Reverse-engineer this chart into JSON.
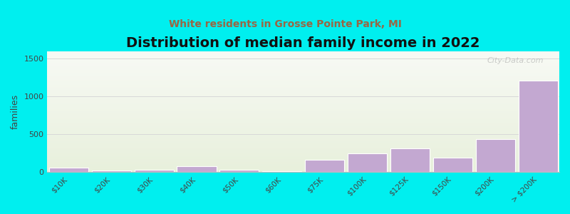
{
  "title": "Distribution of median family income in 2022",
  "subtitle": "White residents in Grosse Pointe Park, MI",
  "ylabel": "families",
  "categories": [
    "$10K",
    "$20K",
    "$30K",
    "$40K",
    "$50K",
    "$60K",
    "$75K",
    "$100K",
    "$125K",
    "$150K",
    "$200K",
    "> $200K"
  ],
  "values": [
    55,
    18,
    28,
    75,
    28,
    10,
    160,
    250,
    315,
    195,
    440,
    1210
  ],
  "bar_color": "#c3a8d1",
  "bar_edge_color": "#ffffff",
  "background_color": "#00EFEF",
  "gradient_top": "#e8f0dc",
  "gradient_bottom": "#f8faf5",
  "ylim": [
    0,
    1600
  ],
  "yticks": [
    0,
    500,
    1000,
    1500
  ],
  "grid_color": "#d8d8d8",
  "title_fontsize": 14,
  "subtitle_fontsize": 10,
  "subtitle_color": "#996644",
  "watermark": "City-Data.com",
  "bar_width": 0.92
}
